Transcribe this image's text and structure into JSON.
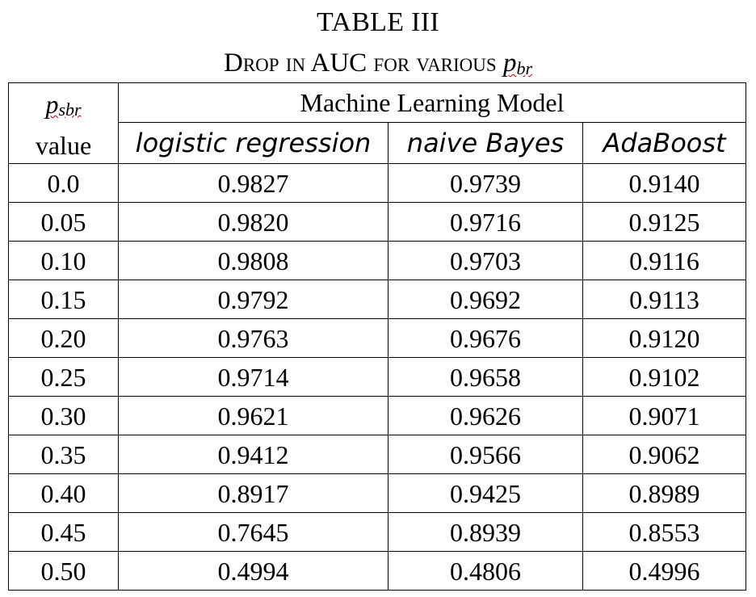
{
  "caption": {
    "label": "TABLE III",
    "title_prefix": "Drop in AUC for various ",
    "title_var_main": "p",
    "title_var_sub": "br"
  },
  "header": {
    "first_col_var_main": "p",
    "first_col_var_sub": "sbr",
    "first_col_label": "value",
    "group_label": "Machine Learning Model",
    "models": [
      "logistic regression",
      "naive Bayes",
      "AdaBoost"
    ]
  },
  "rows": [
    {
      "p": "0.0",
      "lr": "0.9827",
      "nb": "0.9739",
      "ab": "0.9140"
    },
    {
      "p": "0.05",
      "lr": "0.9820",
      "nb": "0.9716",
      "ab": "0.9125"
    },
    {
      "p": "0.10",
      "lr": "0.9808",
      "nb": "0.9703",
      "ab": "0.9116"
    },
    {
      "p": "0.15",
      "lr": "0.9792",
      "nb": "0.9692",
      "ab": "0.9113"
    },
    {
      "p": "0.20",
      "lr": "0.9763",
      "nb": "0.9676",
      "ab": "0.9120"
    },
    {
      "p": "0.25",
      "lr": "0.9714",
      "nb": "0.9658",
      "ab": "0.9102"
    },
    {
      "p": "0.30",
      "lr": "0.9621",
      "nb": "0.9626",
      "ab": "0.9071"
    },
    {
      "p": "0.35",
      "lr": "0.9412",
      "nb": "0.9566",
      "ab": "0.9062"
    },
    {
      "p": "0.40",
      "lr": "0.8917",
      "nb": "0.9425",
      "ab": "0.8989"
    },
    {
      "p": "0.45",
      "lr": "0.7645",
      "nb": "0.8939",
      "ab": "0.8553"
    },
    {
      "p": "0.50",
      "lr": "0.4994",
      "nb": "0.4806",
      "ab": "0.4996"
    }
  ]
}
